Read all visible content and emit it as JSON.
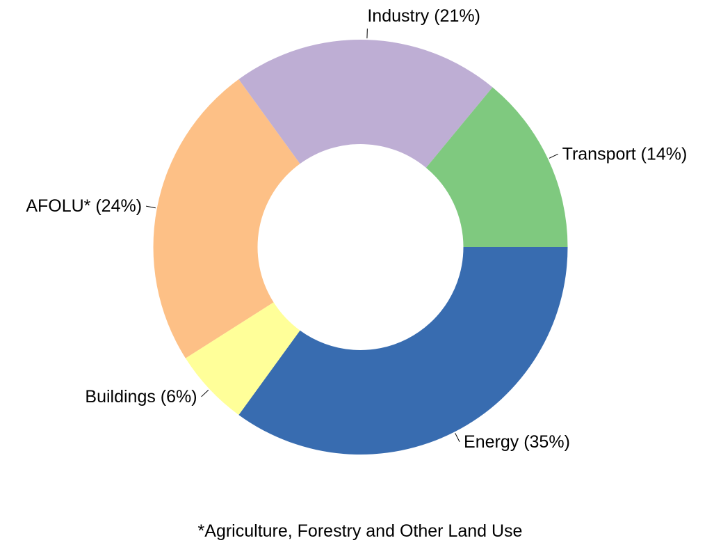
{
  "chart_data": {
    "type": "pie",
    "style": "donut",
    "title": "",
    "slices": [
      {
        "name": "Energy",
        "value": 35,
        "label": "Energy (35%)",
        "color": "#386CB0"
      },
      {
        "name": "Buildings",
        "value": 6,
        "label": "Buildings (6%)",
        "color": "#FFFF99"
      },
      {
        "name": "AFOLU*",
        "value": 24,
        "label": "AFOLU* (24%)",
        "color": "#FDC086"
      },
      {
        "name": "Industry",
        "value": 21,
        "label": "Industry (21%)",
        "color": "#BEAED4"
      },
      {
        "name": "Transport",
        "value": 14,
        "label": "Transport (14%)",
        "color": "#7FC97F"
      }
    ],
    "footnote": "*Agriculture, Forestry and Other Land Use"
  }
}
